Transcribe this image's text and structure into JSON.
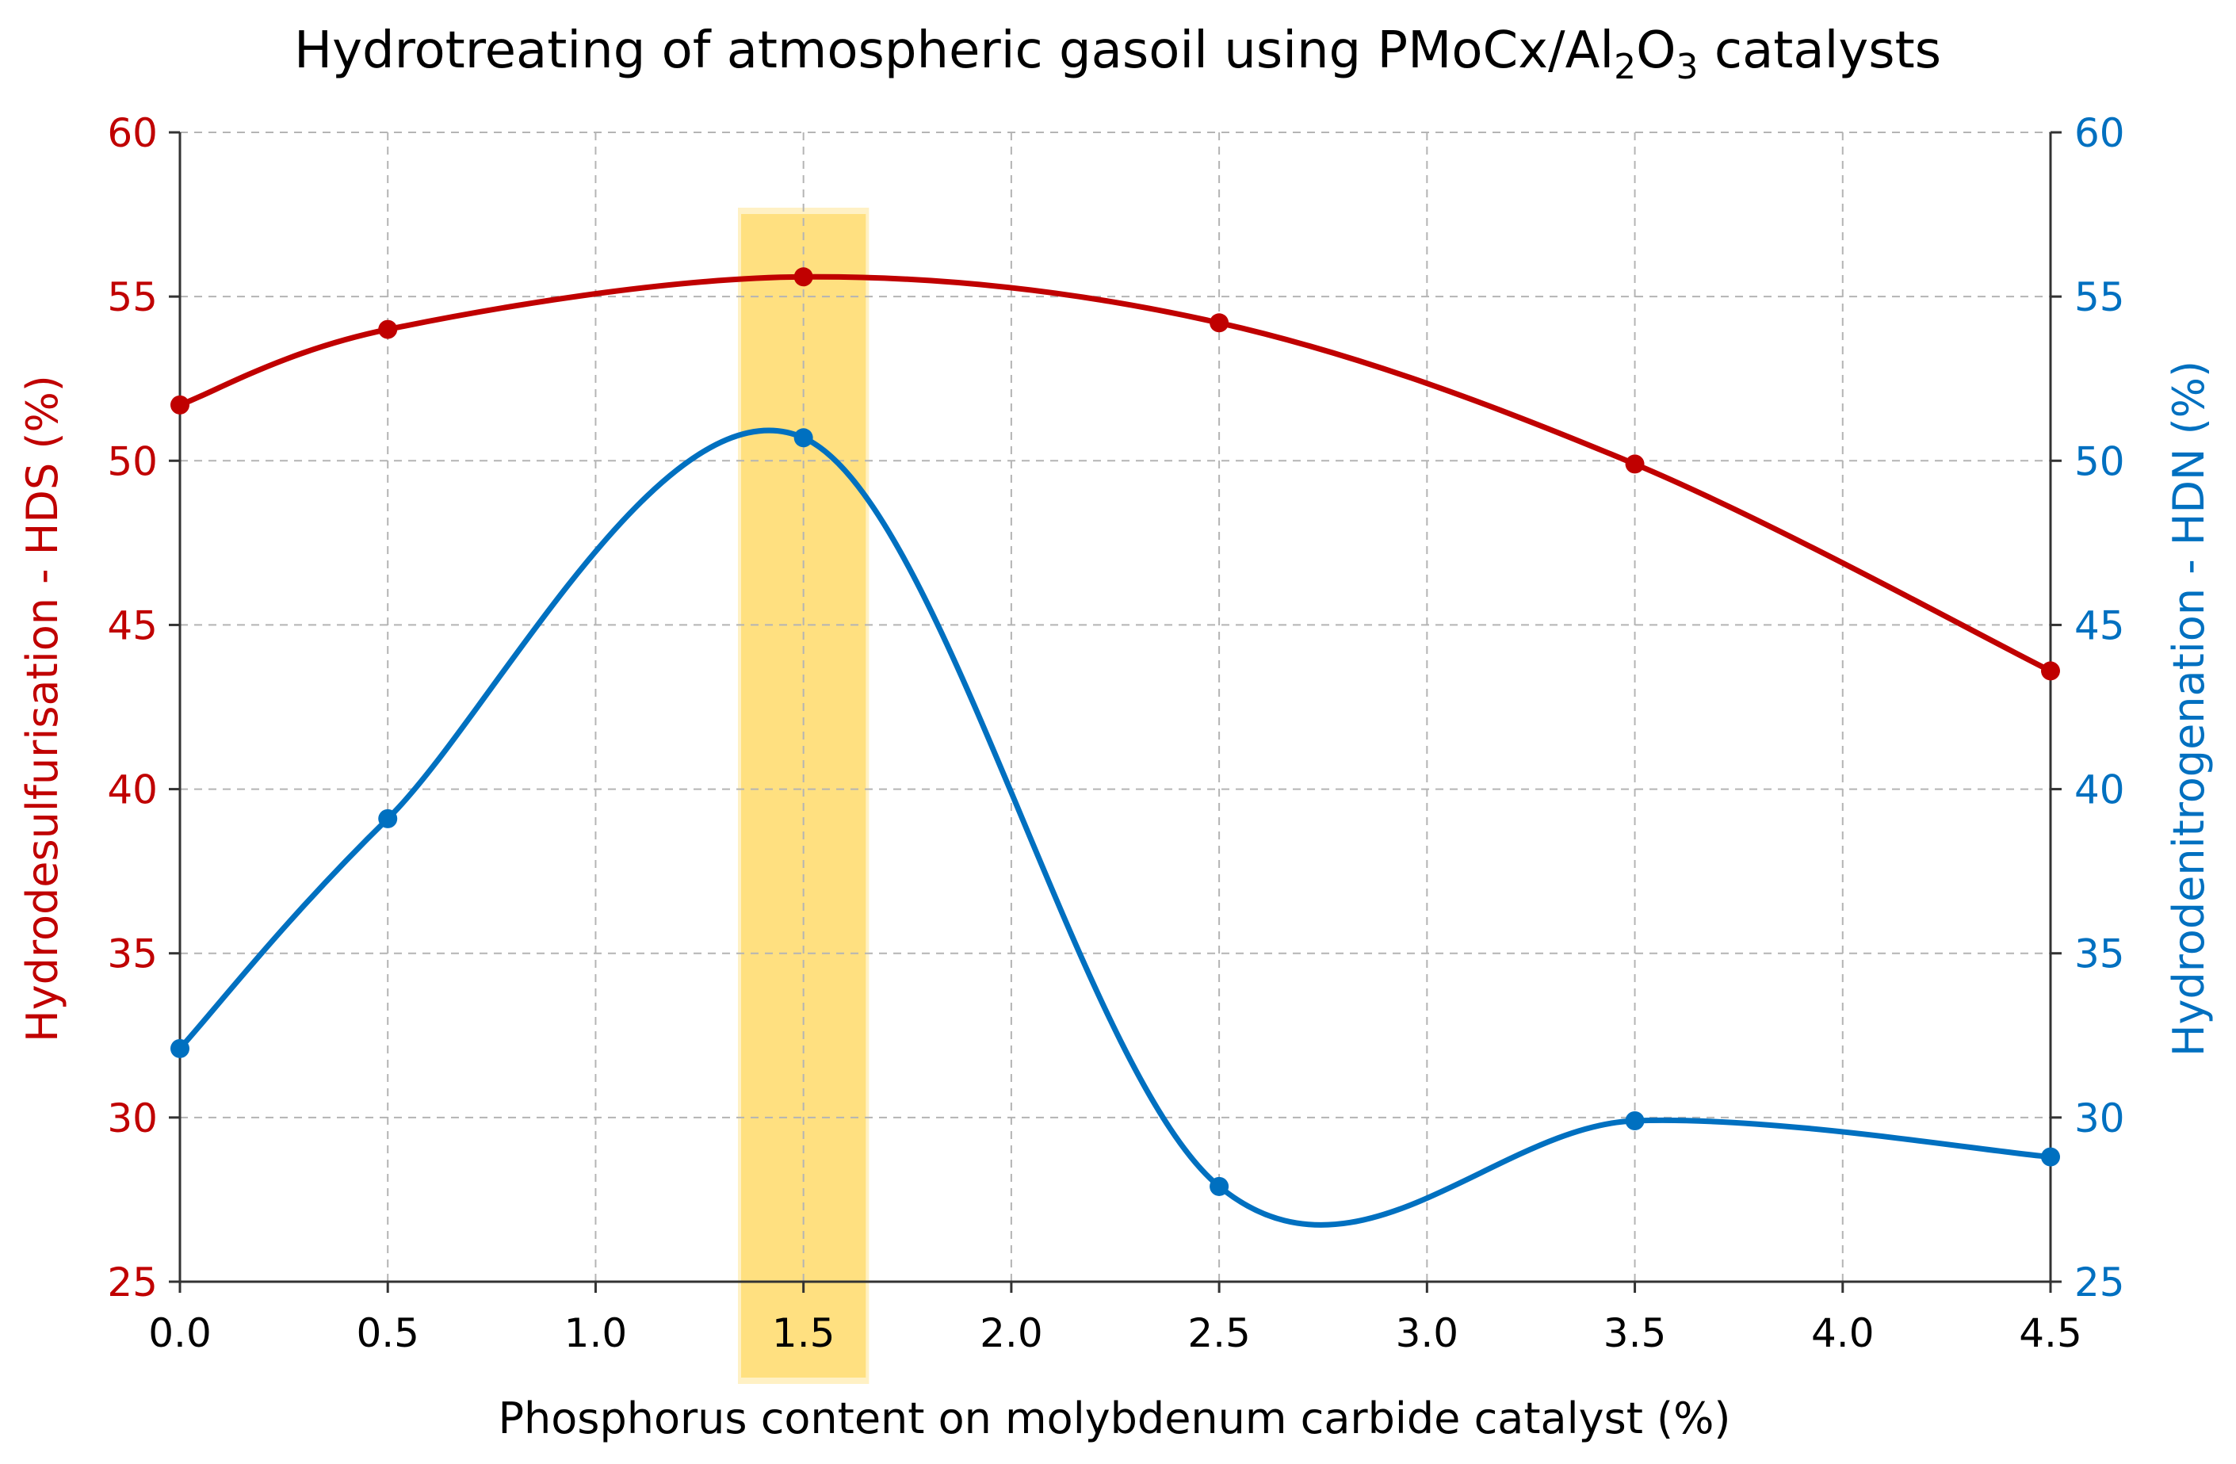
{
  "chart_data": {
    "type": "line",
    "title": {
      "prefix": "Hydrotreating of atmospheric gasoil using PMoCx/Al",
      "sub1": "2",
      "mid": "O",
      "sub2": "3",
      "suffix": " catalysts"
    },
    "xlabel": "Phosphorus content on molybdenum carbide catalyst (%)",
    "ylabel_left": "Hydrodesulfurisation - HDS (%)",
    "ylabel_right": "Hydrodenitrogenation - HDN (%)",
    "xlim": [
      0,
      4.5
    ],
    "ylim": [
      25,
      60
    ],
    "x_ticks": [
      "0.0",
      "0.5",
      "1.0",
      "1.5",
      "2.0",
      "2.5",
      "3.0",
      "3.5",
      "4.0",
      "4.5"
    ],
    "y_ticks": [
      "25",
      "30",
      "35",
      "40",
      "45",
      "50",
      "55",
      "60"
    ],
    "grid": true,
    "highlight": {
      "x_start": 1.35,
      "x_end": 1.65,
      "color": "#FFD75A"
    },
    "colors": {
      "hds": "#C00000",
      "hdn": "#0070C0",
      "grid": "#B4B4B4",
      "axis": "#333333"
    },
    "series": [
      {
        "name": "HDS",
        "axis": "left",
        "x": [
          0,
          0.5,
          1.5,
          2.5,
          3.5,
          4.5
        ],
        "values": [
          51.7,
          54.0,
          55.6,
          54.2,
          49.9,
          43.6
        ]
      },
      {
        "name": "HDN",
        "axis": "right",
        "x": [
          0,
          0.5,
          1.5,
          2.5,
          3.5,
          4.5
        ],
        "values": [
          32.1,
          39.1,
          50.7,
          27.9,
          29.9,
          28.8
        ]
      }
    ]
  }
}
